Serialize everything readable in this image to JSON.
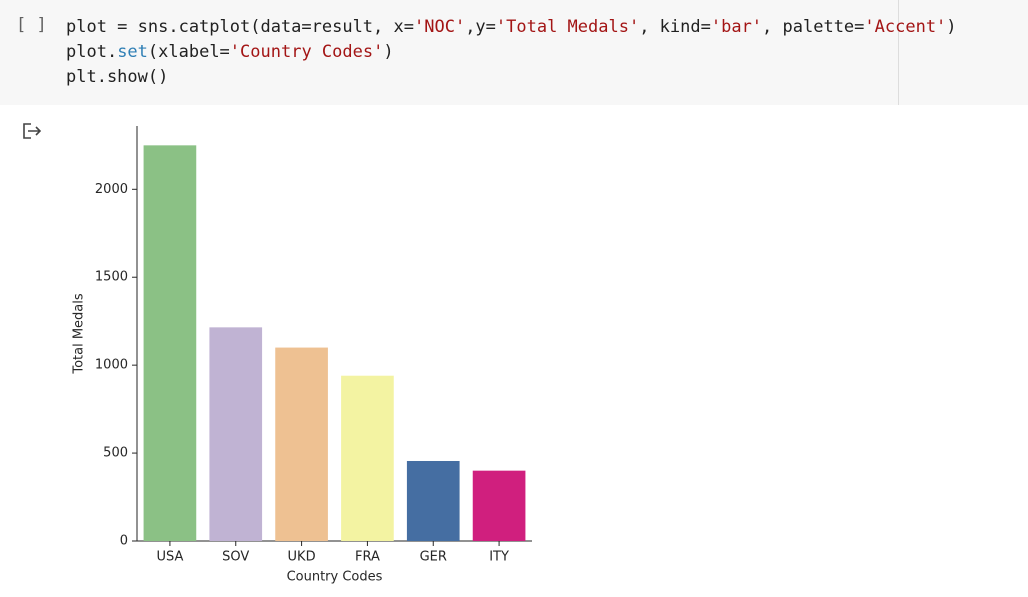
{
  "cell": {
    "prompt": "[ ]",
    "code_lines": [
      [
        {
          "text": "plot = sns.catplot(data=result, x=",
          "color": "#212121"
        },
        {
          "text": "'NOC'",
          "color": "#a31515"
        },
        {
          "text": ",y=",
          "color": "#212121"
        },
        {
          "text": "'Total Medals'",
          "color": "#a31515"
        },
        {
          "text": ", kind=",
          "color": "#212121"
        },
        {
          "text": "'bar'",
          "color": "#a31515"
        },
        {
          "text": ", palette=",
          "color": "#212121"
        },
        {
          "text": "'Accent'",
          "color": "#a31515"
        },
        {
          "text": ")",
          "color": "#212121"
        }
      ],
      [
        {
          "text": "plot.",
          "color": "#212121"
        },
        {
          "text": "set",
          "color": "#2f7fb5"
        },
        {
          "text": "(xlabel=",
          "color": "#212121"
        },
        {
          "text": "'Country Codes'",
          "color": "#a31515"
        },
        {
          "text": ")",
          "color": "#212121"
        }
      ],
      [
        {
          "text": "plt.show()",
          "color": "#212121"
        }
      ]
    ]
  },
  "chart_data": {
    "type": "bar",
    "x_label": "Country Codes",
    "y_label": "Total Medals",
    "categories": [
      "USA",
      "SOV",
      "UKD",
      "FRA",
      "GER",
      "ITY"
    ],
    "values": [
      2250,
      1215,
      1100,
      940,
      455,
      400
    ],
    "colors": [
      "#8bc185",
      "#c0b3d3",
      "#eec192",
      "#f3f3a2",
      "#456ea2",
      "#d01f7e"
    ],
    "ylim": [
      0,
      2360
    ],
    "yticks": [
      0,
      500,
      1000,
      1500,
      2000
    ],
    "grid": false
  }
}
